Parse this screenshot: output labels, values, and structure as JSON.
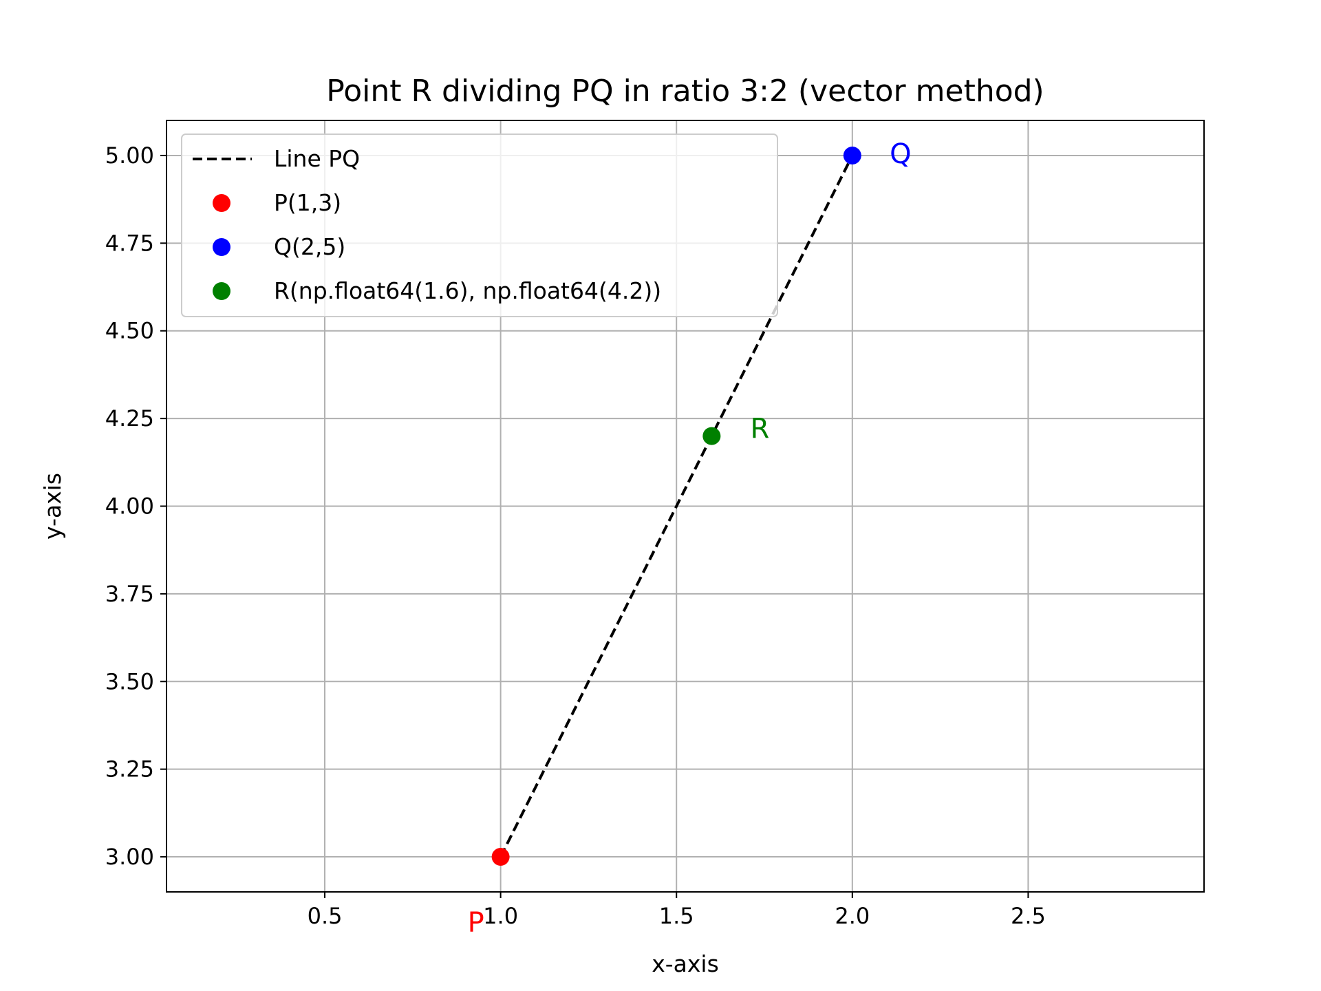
{
  "chart_data": {
    "type": "scatter",
    "title": "Point R dividing PQ in ratio 3:2 (vector method)",
    "xlabel": "x-axis",
    "ylabel": "y-axis",
    "xlim": [
      0.05,
      3.0
    ],
    "ylim": [
      2.9,
      5.1
    ],
    "xticks": [
      0.5,
      1.0,
      1.5,
      2.0,
      2.5
    ],
    "xtick_labels": [
      "0.5",
      "1.0",
      "1.5",
      "2.0",
      "2.5"
    ],
    "yticks": [
      3.0,
      3.25,
      3.5,
      3.75,
      4.0,
      4.25,
      4.5,
      4.75,
      5.0
    ],
    "ytick_labels": [
      "3.00",
      "3.25",
      "3.50",
      "3.75",
      "4.00",
      "4.25",
      "4.50",
      "4.75",
      "5.00"
    ],
    "grid": true,
    "legend_position": "upper-left",
    "line": {
      "name": "Line PQ",
      "style": "dashed",
      "color": "#000000",
      "x": [
        1,
        2
      ],
      "y": [
        3,
        5
      ]
    },
    "points": [
      {
        "name": "P(1,3)",
        "label": "P",
        "x": 1,
        "y": 3,
        "color": "#ff0000"
      },
      {
        "name": "Q(2,5)",
        "label": "Q",
        "x": 2,
        "y": 5,
        "color": "#0000ff"
      },
      {
        "name": "R(np.float64(1.6), np.float64(4.2))",
        "label": "R",
        "x": 1.6,
        "y": 4.2,
        "color": "#008000"
      }
    ]
  }
}
